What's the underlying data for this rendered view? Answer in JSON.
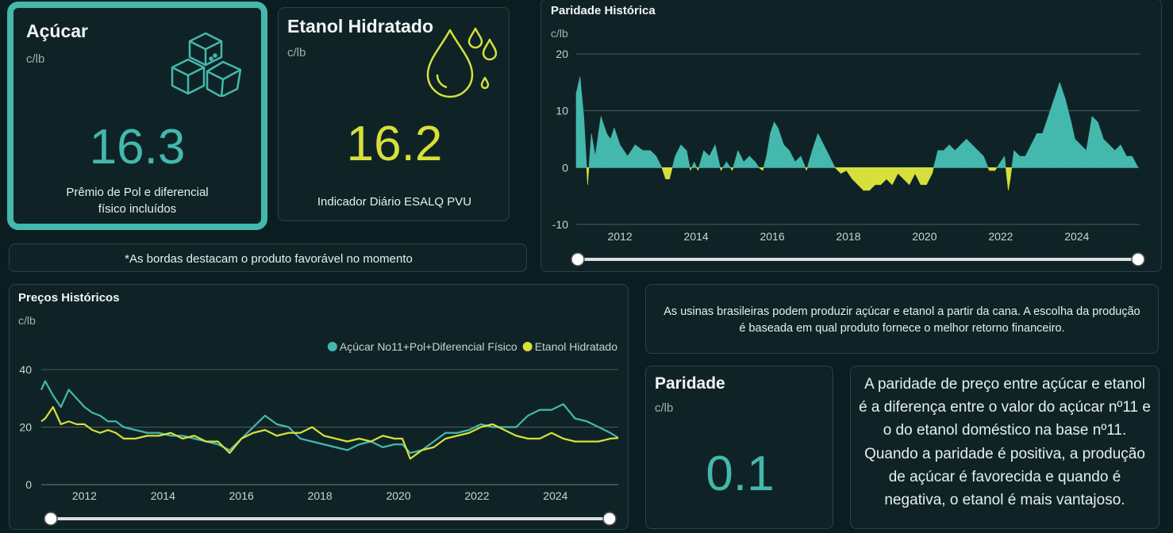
{
  "colors": {
    "teal": "#44b8ac",
    "yellow": "#d7e03a",
    "bg": "#0b1d20"
  },
  "acucar": {
    "title": "Açúcar",
    "unit": "c/lb",
    "value": "16.3",
    "desc_line1": "Prêmio de Pol e diferencial",
    "desc_line2": "físico incluídos",
    "icon": "sugar-cubes-icon"
  },
  "etanol": {
    "title": "Etanol Hidratado",
    "unit": "c/lb",
    "value": "16.2",
    "desc": "Indicador Diário ESALQ PVU",
    "icon": "ethanol-drops-icon"
  },
  "note": "*As bordas destacam o produto favorável no momento",
  "paridade_chart": {
    "title": "Paridade Histórica",
    "unit": "c/lb"
  },
  "precos_chart": {
    "title": "Preços Históricos",
    "unit": "c/lb",
    "legend": [
      "Açúcar No11+Pol+Diferencial Físico",
      "Etanol Hidratado"
    ]
  },
  "info": "As usinas brasileiras podem produzir açúcar e etanol a partir da cana. A escolha da produção é baseada em qual produto fornece o melhor retorno financeiro.",
  "paridade": {
    "title": "Paridade",
    "unit": "c/lb",
    "value": "0.1"
  },
  "explain": "A paridade de preço entre açúcar e etanol é a diferença entre o valor do açúcar nº11 e o do etanol doméstico na base nº11. Quando a paridade é positiva, a produção de açúcar é favorecida e quando é negativa, o etanol é mais vantajoso.",
  "chart_data": [
    {
      "type": "area",
      "title": "Paridade Histórica",
      "ylabel": "c/lb",
      "ylim": [
        -10,
        20
      ],
      "yticks": [
        -10,
        0,
        10,
        20
      ],
      "xlim": [
        2010.85,
        2025.65
      ],
      "xticks": [
        2012,
        2014,
        2016,
        2018,
        2020,
        2022,
        2024
      ],
      "legend": "none",
      "grid": true,
      "positive_color": "#44b8ac",
      "negative_color": "#d7e03a",
      "x": [
        2010.85,
        2010.95,
        2011.05,
        2011.15,
        2011.25,
        2011.35,
        2011.5,
        2011.65,
        2011.75,
        2011.85,
        2012.0,
        2012.2,
        2012.4,
        2012.6,
        2012.8,
        2012.95,
        2013.1,
        2013.2,
        2013.3,
        2013.45,
        2013.6,
        2013.75,
        2013.85,
        2013.95,
        2014.05,
        2014.2,
        2014.35,
        2014.5,
        2014.65,
        2014.8,
        2014.95,
        2015.1,
        2015.25,
        2015.4,
        2015.55,
        2015.65,
        2015.75,
        2015.85,
        2015.95,
        2016.05,
        2016.15,
        2016.3,
        2016.45,
        2016.6,
        2016.75,
        2016.9,
        2017.05,
        2017.2,
        2017.35,
        2017.5,
        2017.65,
        2017.8,
        2017.95,
        2018.1,
        2018.25,
        2018.4,
        2018.55,
        2018.7,
        2018.85,
        2019.0,
        2019.15,
        2019.3,
        2019.45,
        2019.6,
        2019.75,
        2019.9,
        2020.05,
        2020.2,
        2020.35,
        2020.5,
        2020.65,
        2020.8,
        2020.95,
        2021.1,
        2021.25,
        2021.4,
        2021.55,
        2021.7,
        2021.85,
        2022.0,
        2022.1,
        2022.2,
        2022.25,
        2022.35,
        2022.5,
        2022.65,
        2022.8,
        2022.95,
        2023.1,
        2023.25,
        2023.4,
        2023.55,
        2023.7,
        2023.85,
        2023.95,
        2024.1,
        2024.25,
        2024.4,
        2024.55,
        2024.7,
        2024.85,
        2025.0,
        2025.15,
        2025.3,
        2025.45,
        2025.6
      ],
      "y": [
        13,
        16,
        9,
        -3,
        6,
        2,
        9,
        6,
        5,
        7,
        4,
        2,
        4,
        3,
        3,
        2,
        0,
        -2,
        -2,
        2,
        4,
        3,
        -0.5,
        1,
        -0.5,
        3,
        2,
        4,
        -0.5,
        1,
        -0.5,
        3,
        1,
        2,
        1,
        0,
        -0.5,
        2,
        6,
        8,
        7,
        4,
        3,
        1,
        2,
        -0.5,
        3,
        6,
        4,
        2,
        0,
        -1,
        -0.5,
        -2,
        -3,
        -4,
        -4,
        -3,
        -3,
        -2,
        -3,
        -1,
        -2,
        -3,
        -1,
        -3,
        -3,
        -1,
        3,
        3,
        4,
        3,
        4,
        5,
        4,
        3,
        2,
        -0.5,
        -0.5,
        1,
        2,
        -4,
        -2,
        3,
        2,
        2,
        4,
        6,
        6,
        9,
        12,
        15,
        12,
        8,
        5,
        4,
        3,
        9,
        8,
        5,
        4,
        3,
        4,
        2,
        2,
        0.1
      ],
      "series": [
        {
          "name": "Paridade",
          "values": "y"
        }
      ]
    },
    {
      "type": "line",
      "title": "Preços Históricos",
      "ylabel": "c/lb",
      "ylim": [
        0,
        40
      ],
      "yticks": [
        0,
        20,
        40
      ],
      "xlim": [
        2010.9,
        2025.6
      ],
      "xticks": [
        2012,
        2014,
        2016,
        2018,
        2020,
        2022,
        2024
      ],
      "legend": "top-right",
      "grid": true,
      "x": [
        2010.9,
        2011.0,
        2011.2,
        2011.4,
        2011.6,
        2011.8,
        2012.0,
        2012.2,
        2012.4,
        2012.6,
        2012.8,
        2013.0,
        2013.3,
        2013.6,
        2013.9,
        2014.2,
        2014.5,
        2014.8,
        2015.1,
        2015.4,
        2015.7,
        2016.0,
        2016.3,
        2016.6,
        2016.9,
        2017.2,
        2017.5,
        2017.8,
        2018.1,
        2018.4,
        2018.7,
        2019.0,
        2019.3,
        2019.6,
        2019.9,
        2020.1,
        2020.3,
        2020.6,
        2020.9,
        2021.2,
        2021.5,
        2021.8,
        2022.1,
        2022.4,
        2022.7,
        2023.0,
        2023.3,
        2023.6,
        2023.9,
        2024.2,
        2024.5,
        2024.8,
        2025.1,
        2025.4,
        2025.6
      ],
      "series": [
        {
          "name": "Açúcar No11+Pol+Diferencial Físico",
          "color": "#44b8ac",
          "values": [
            33,
            36,
            31,
            27,
            33,
            30,
            27,
            25,
            24,
            22,
            22,
            20,
            19,
            18,
            18,
            17,
            17,
            16,
            15,
            14,
            12,
            16,
            20,
            24,
            21,
            20,
            16,
            15,
            14,
            13,
            12,
            14,
            15,
            13,
            14,
            14,
            11,
            12,
            15,
            18,
            18,
            19,
            21,
            20,
            20,
            20,
            24,
            26,
            26,
            28,
            23,
            22,
            20,
            18,
            16.3
          ]
        },
        {
          "name": "Etanol Hidratado",
          "color": "#d7e03a",
          "values": [
            22,
            23,
            27,
            21,
            22,
            21,
            21,
            19,
            18,
            19,
            18,
            16,
            16,
            17,
            17,
            18,
            16,
            17,
            15,
            15,
            11,
            16,
            18,
            19,
            17,
            18,
            18,
            20,
            17,
            16,
            15,
            16,
            15,
            17,
            16,
            16,
            9,
            12,
            13,
            16,
            17,
            18,
            20,
            21,
            19,
            17,
            16,
            16,
            18,
            16,
            15,
            15,
            15,
            16,
            16.2
          ]
        }
      ]
    }
  ]
}
